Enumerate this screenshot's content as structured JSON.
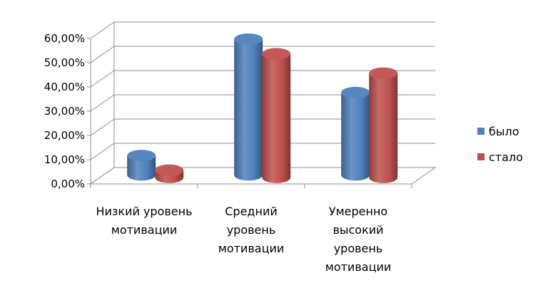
{
  "chart_data": {
    "type": "bar",
    "style": "3d-cylinder",
    "categories": [
      [
        "Низкий уровень",
        "мотивации"
      ],
      [
        "Средний",
        "уровень",
        "мотивации"
      ],
      [
        "Умеренно",
        "высокий",
        "уровень",
        "мотивации"
      ]
    ],
    "series": [
      {
        "name": "было",
        "color": "#4f81bd",
        "values": [
          8,
          56,
          34
        ]
      },
      {
        "name": "стало",
        "color": "#c0504d",
        "values": [
          3,
          51,
          43
        ]
      }
    ],
    "ylim": [
      0,
      60
    ],
    "yticks": [
      0,
      10,
      20,
      30,
      40,
      50,
      60
    ],
    "ytick_labels": [
      "0,00%",
      "10,00%",
      "20,00%",
      "30,00%",
      "40,00%",
      "50,00%",
      "60,00%"
    ],
    "grid": true,
    "legend_position": "right"
  }
}
